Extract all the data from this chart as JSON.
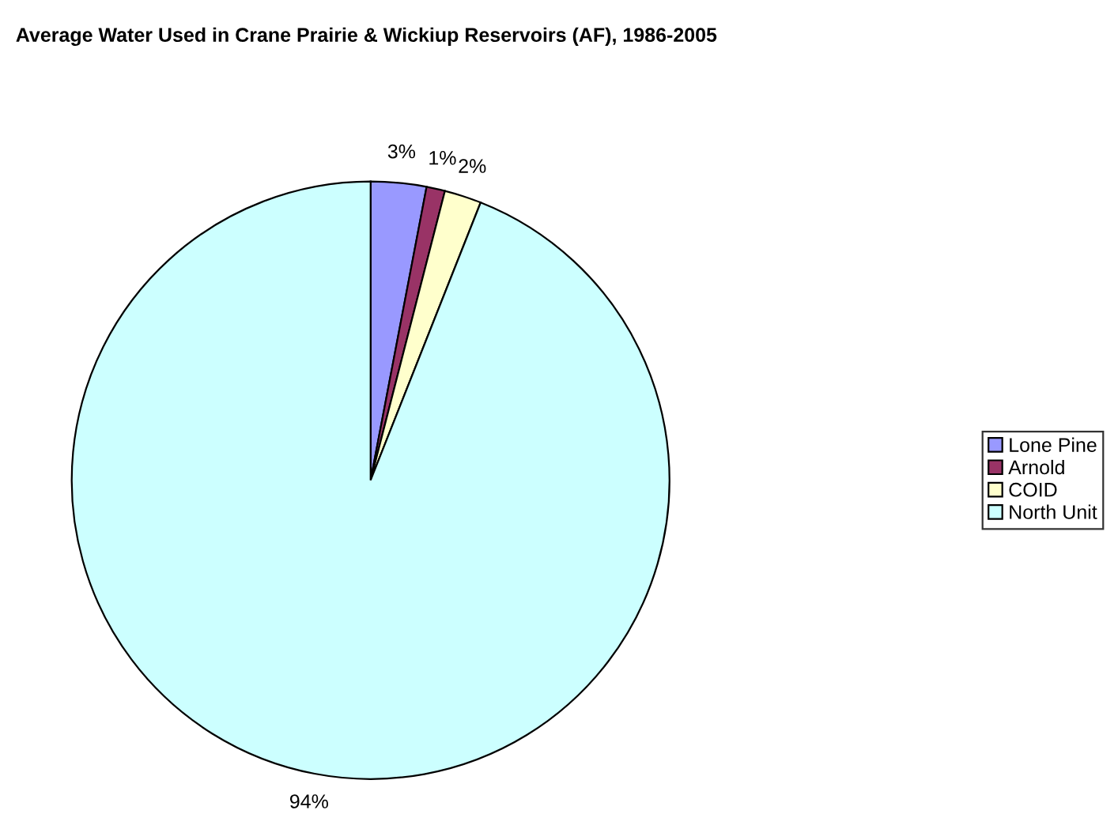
{
  "chart_data": {
    "type": "pie",
    "title": "Average Water Used in Crane Prairie & Wickiup Reservoirs (AF), 1986-2005",
    "categories": [
      "Lone Pine",
      "Arnold",
      "COID",
      "North Unit"
    ],
    "values": [
      3,
      1,
      2,
      94
    ],
    "colors": [
      "#9999ff",
      "#993366",
      "#ffffcc",
      "#ccffff"
    ],
    "value_labels": [
      "3%",
      "1%",
      "2%",
      "94%"
    ],
    "legend": "right"
  }
}
